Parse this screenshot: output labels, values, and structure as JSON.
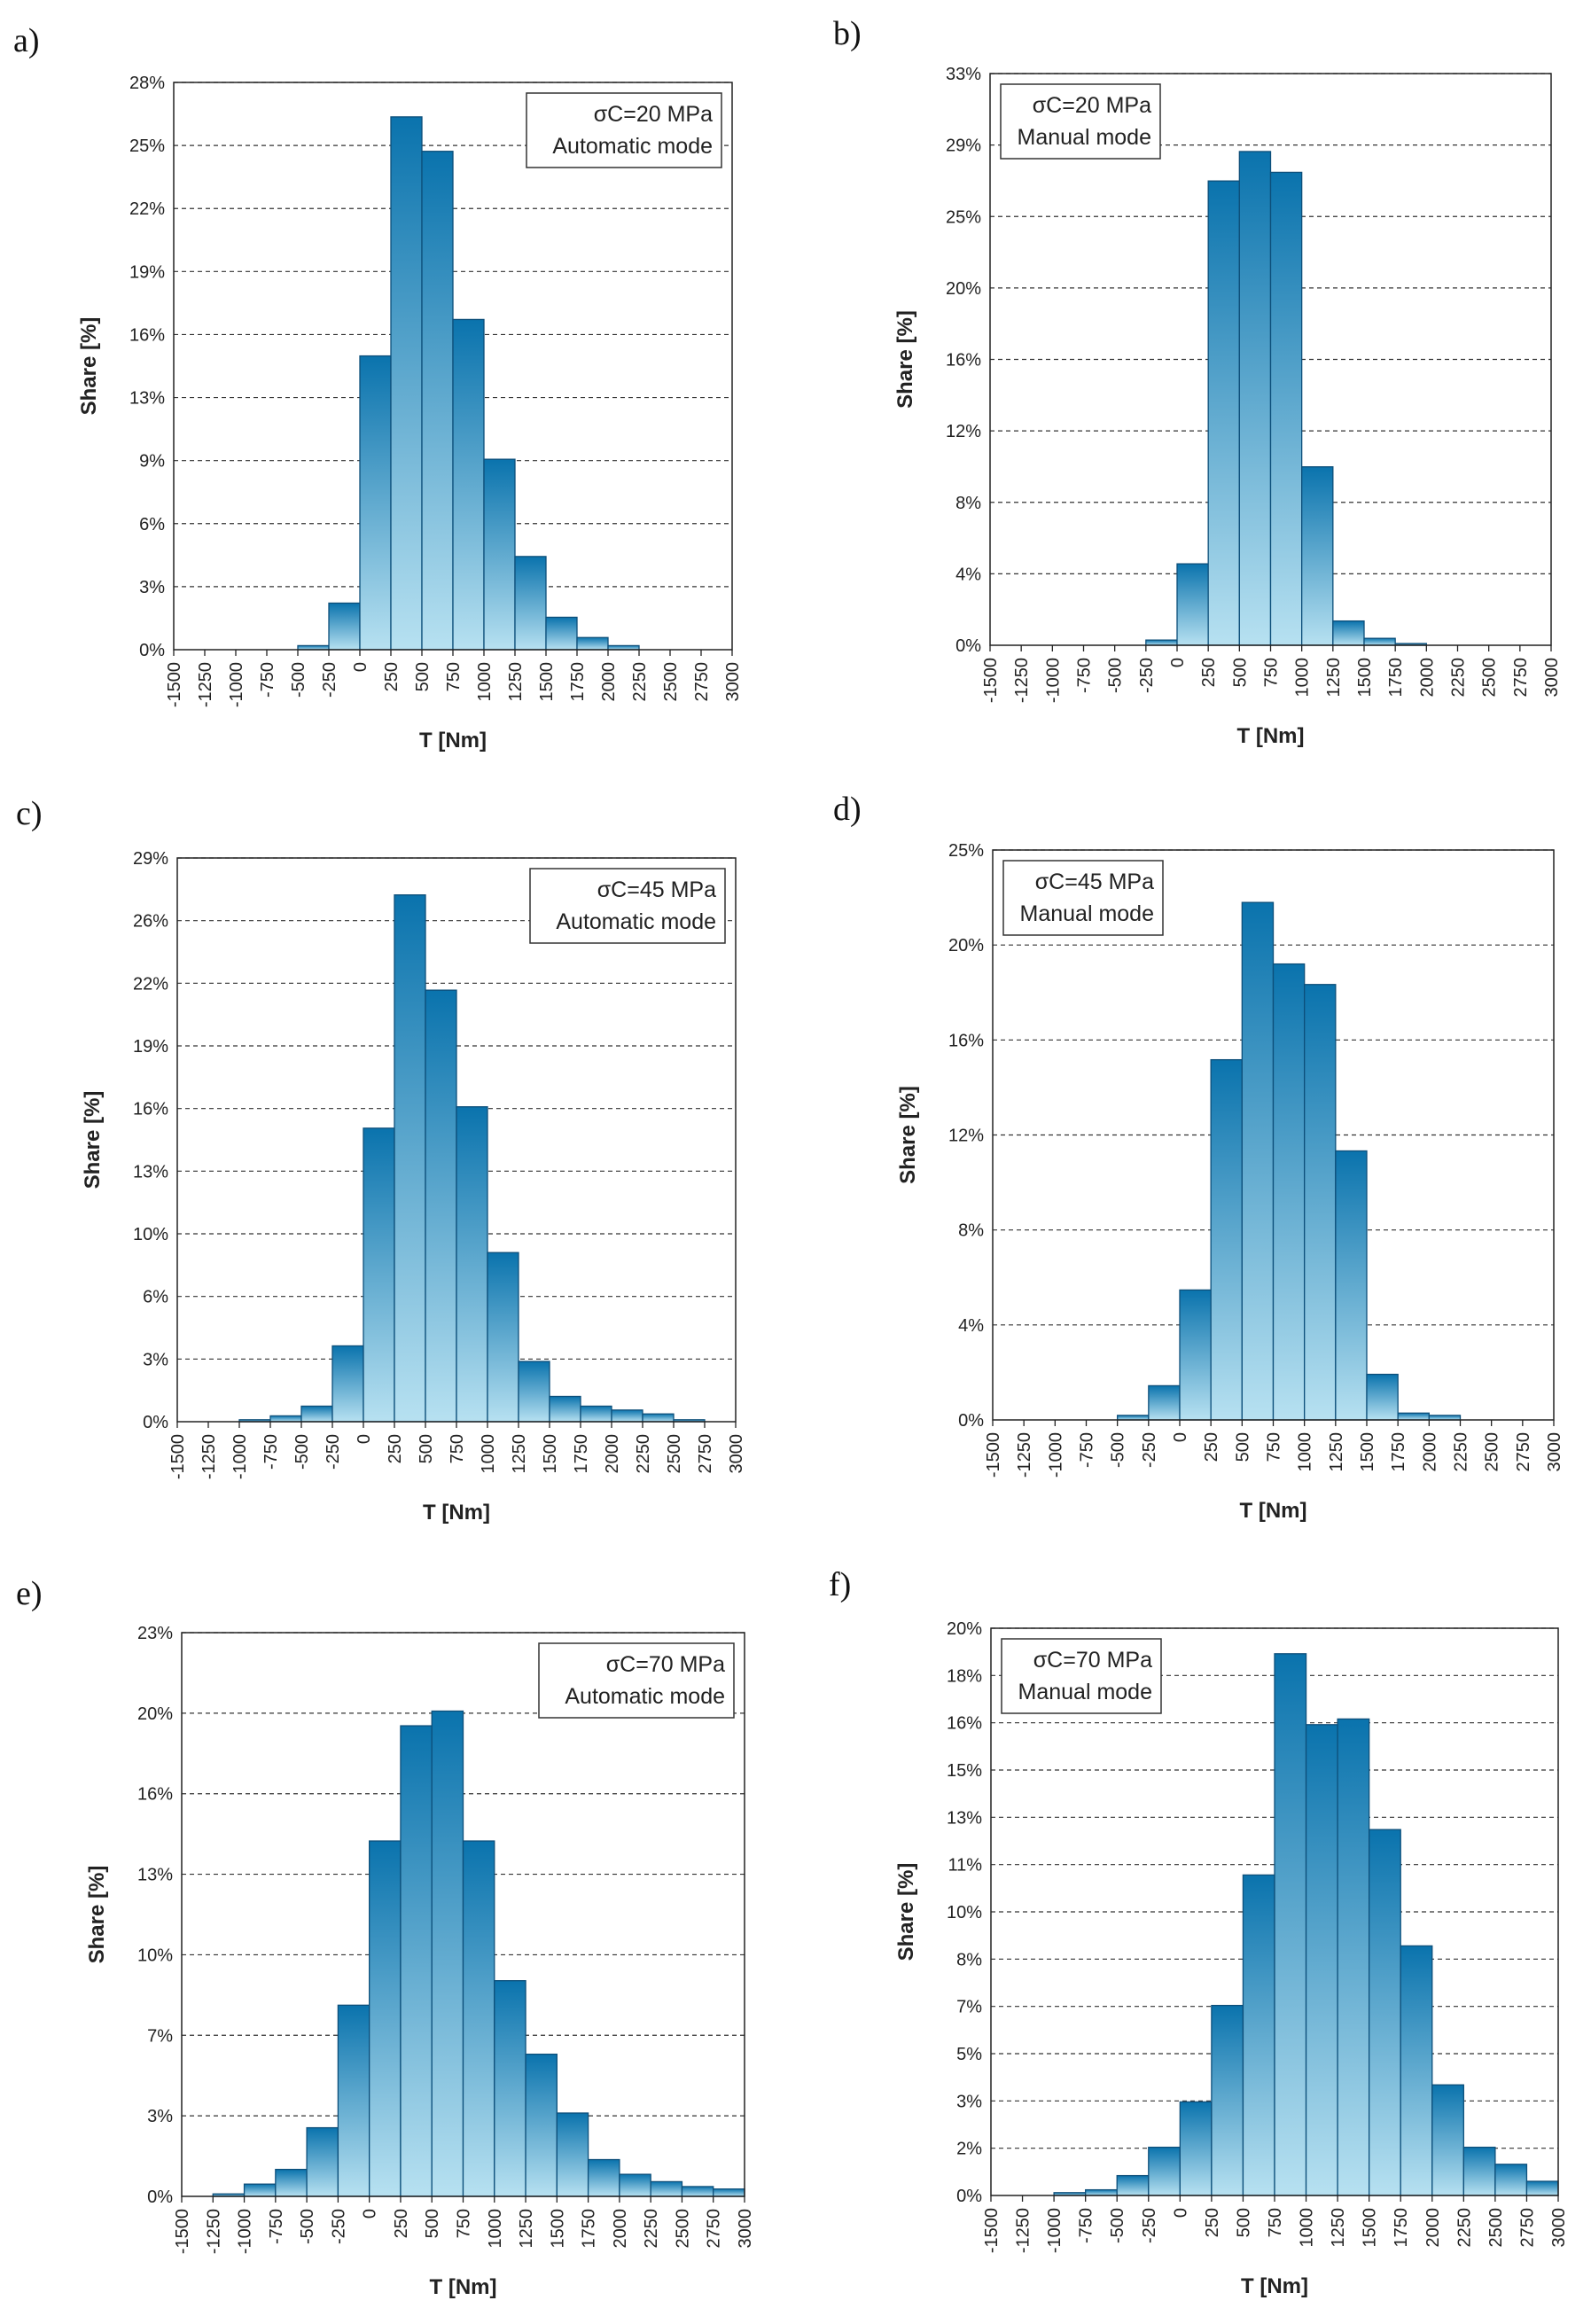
{
  "figure": {
    "colors": {
      "bar_top": "#0a73ad",
      "bar_bottom": "#b7e1f1",
      "bar_edge": "#0d4f7a",
      "grid": "#333333"
    }
  },
  "chart_data": [
    {
      "id": "a",
      "panel_label": "a)",
      "type": "bar",
      "annotation": {
        "line1": "σC=20 MPa",
        "line2": "Automatic mode"
      },
      "xlabel": "T [Nm]",
      "ylabel": "Share [%]",
      "legend_position": "top-right",
      "x_ticks": [
        "-1500",
        "-1250",
        "-1000",
        "-750",
        "-500",
        "-250",
        "0",
        "250",
        "500",
        "750",
        "1000",
        "1250",
        "1500",
        "1750",
        "2000",
        "2250",
        "2500",
        "2750",
        "3000"
      ],
      "y_ticks": [
        "0%",
        "3%",
        "6%",
        "9%",
        "13%",
        "16%",
        "19%",
        "22%",
        "25%",
        "28%"
      ],
      "ymax": 28,
      "values": [
        0,
        0,
        0,
        0,
        0.2,
        2.3,
        14.5,
        26.3,
        24.6,
        16.3,
        9.4,
        4.6,
        1.6,
        0.6,
        0.2,
        0,
        0,
        0
      ]
    },
    {
      "id": "b",
      "panel_label": "b)",
      "type": "bar",
      "annotation": {
        "line1": "σC=20 MPa",
        "line2": "Manual mode"
      },
      "xlabel": "T [Nm]",
      "ylabel": "Share [%]",
      "legend_position": "top-left",
      "x_ticks": [
        "-1500",
        "-1250",
        "-1000",
        "-750",
        "-500",
        "-250",
        "0",
        "250",
        "500",
        "750",
        "1000",
        "1250",
        "1500",
        "1750",
        "2000",
        "2250",
        "2500",
        "2750",
        "3000"
      ],
      "y_ticks": [
        "0%",
        "4%",
        "8%",
        "12%",
        "16%",
        "20%",
        "25%",
        "29%",
        "33%"
      ],
      "ymax": 33,
      "values": [
        0,
        0,
        0,
        0,
        0,
        0.3,
        4.7,
        26.8,
        28.5,
        27.3,
        10.3,
        1.4,
        0.4,
        0.1,
        0,
        0,
        0,
        0
      ]
    },
    {
      "id": "c",
      "panel_label": "c)",
      "type": "bar",
      "annotation": {
        "line1": "σC=45 MPa",
        "line2": "Automatic mode"
      },
      "xlabel": "T [Nm]",
      "ylabel": "Share [%]",
      "legend_position": "top-right",
      "x_ticks": [
        "-1500",
        "-1250",
        "-1000",
        "-750",
        "-500",
        "-250",
        "0",
        "250",
        "500",
        "750",
        "1000",
        "1250",
        "1500",
        "1750",
        "2000",
        "2250",
        "2500",
        "2750",
        "3000"
      ],
      "y_ticks": [
        "0%",
        "3%",
        "6%",
        "10%",
        "13%",
        "16%",
        "19%",
        "22%",
        "26%",
        "29%"
      ],
      "ymax": 29,
      "values": [
        0,
        0,
        0.1,
        0.3,
        0.8,
        3.9,
        15.1,
        27.1,
        22.2,
        16.2,
        8.7,
        3.1,
        1.3,
        0.8,
        0.6,
        0.4,
        0.1,
        0
      ]
    },
    {
      "id": "d",
      "panel_label": "d)",
      "type": "bar",
      "annotation": {
        "line1": "σC=45 MPa",
        "line2": "Manual mode"
      },
      "xlabel": "T [Nm]",
      "ylabel": "Share [%]",
      "legend_position": "top-left",
      "x_ticks": [
        "-1500",
        "-1250",
        "-1000",
        "-750",
        "-500",
        "-250",
        "0",
        "250",
        "500",
        "750",
        "1000",
        "1250",
        "1500",
        "1750",
        "2000",
        "2250",
        "2500",
        "2750",
        "3000"
      ],
      "y_ticks": [
        "0%",
        "4%",
        "8%",
        "12%",
        "16%",
        "20%",
        "25%"
      ],
      "ymax": 25,
      "values": [
        0,
        0,
        0,
        0,
        0.2,
        1.5,
        5.7,
        15.8,
        22.7,
        20.0,
        19.1,
        11.8,
        2.0,
        0.3,
        0.2,
        0,
        0,
        0
      ]
    },
    {
      "id": "e",
      "panel_label": "e)",
      "type": "bar",
      "annotation": {
        "line1": "σC=70 MPa",
        "line2": "Automatic mode"
      },
      "xlabel": "T [Nm]",
      "ylabel": "Share [%]",
      "legend_position": "top-right",
      "x_ticks": [
        "-1500",
        "-1250",
        "-1000",
        "-750",
        "-500",
        "-250",
        "0",
        "250",
        "500",
        "750",
        "1000",
        "1250",
        "1500",
        "1750",
        "2000",
        "2250",
        "2500",
        "2750",
        "3000"
      ],
      "y_ticks": [
        "0%",
        "3%",
        "7%",
        "10%",
        "13%",
        "16%",
        "20%",
        "23%"
      ],
      "ymax": 23,
      "values": [
        0,
        0.1,
        0.5,
        1.1,
        2.8,
        7.8,
        14.5,
        19.2,
        19.8,
        14.5,
        8.8,
        5.8,
        3.4,
        1.5,
        0.9,
        0.6,
        0.4,
        0.3
      ]
    },
    {
      "id": "f",
      "panel_label": "f)",
      "type": "bar",
      "annotation": {
        "line1": "σC=70 MPa",
        "line2": "Manual mode"
      },
      "xlabel": "T [Nm]",
      "ylabel": "Share [%]",
      "legend_position": "top-left",
      "x_ticks": [
        "-1500",
        "-1250",
        "-1000",
        "-750",
        "-500",
        "-250",
        "0",
        "250",
        "500",
        "750",
        "1000",
        "1250",
        "1500",
        "1750",
        "2000",
        "2250",
        "2500",
        "2750",
        "3000"
      ],
      "y_ticks": [
        "0%",
        "2%",
        "3%",
        "5%",
        "7%",
        "8%",
        "10%",
        "11%",
        "13%",
        "15%",
        "16%",
        "18%",
        "20%"
      ],
      "ymax": 20,
      "values": [
        0,
        0,
        0.1,
        0.2,
        0.7,
        1.7,
        3.3,
        6.7,
        11.3,
        19.1,
        16.6,
        16.8,
        12.9,
        8.8,
        3.9,
        1.7,
        1.1,
        0.5
      ]
    }
  ]
}
